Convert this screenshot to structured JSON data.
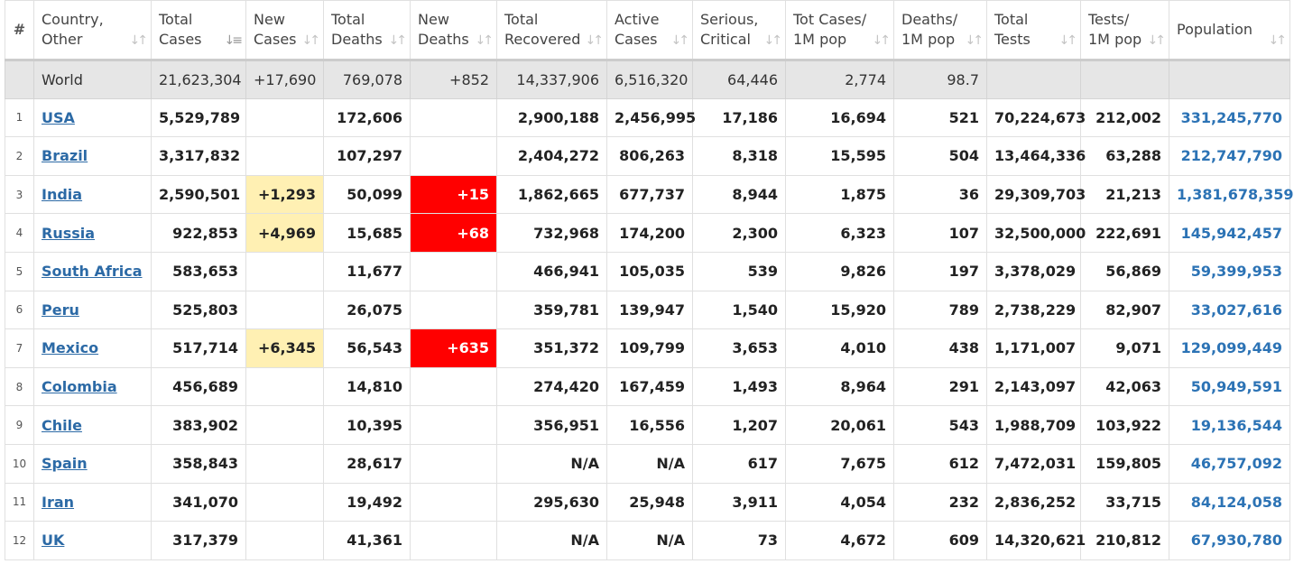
{
  "headers": [
    {
      "l1": "#",
      "l2": ""
    },
    {
      "l1": "Country,",
      "l2": "Other"
    },
    {
      "l1": "Total",
      "l2": "Cases"
    },
    {
      "l1": "New",
      "l2": "Cases"
    },
    {
      "l1": "Total",
      "l2": "Deaths"
    },
    {
      "l1": "New",
      "l2": "Deaths"
    },
    {
      "l1": "Total",
      "l2": "Recovered"
    },
    {
      "l1": "Active",
      "l2": "Cases"
    },
    {
      "l1": "Serious,",
      "l2": "Critical"
    },
    {
      "l1": "Tot Cases/",
      "l2": "1M pop"
    },
    {
      "l1": "Deaths/",
      "l2": "1M pop"
    },
    {
      "l1": "Total",
      "l2": "Tests"
    },
    {
      "l1": "Tests/",
      "l2": "1M pop"
    },
    {
      "l1": "Population",
      "l2": ""
    }
  ],
  "sort_icon": "↓↑",
  "sort_icon_active": "↓≡",
  "world": {
    "country": "World",
    "total_cases": "21,623,304",
    "new_cases": "+17,690",
    "total_deaths": "769,078",
    "new_deaths": "+852",
    "total_recovered": "14,337,906",
    "active_cases": "6,516,320",
    "serious": "64,446",
    "cases_per_m": "2,774",
    "deaths_per_m": "98.7",
    "total_tests": "",
    "tests_per_m": "",
    "population": ""
  },
  "rows": [
    {
      "idx": "1",
      "country": "USA",
      "total_cases": "5,529,789",
      "new_cases": "",
      "total_deaths": "172,606",
      "new_deaths": "",
      "total_recovered": "2,900,188",
      "active_cases": "2,456,995",
      "serious": "17,186",
      "cases_per_m": "16,694",
      "deaths_per_m": "521",
      "total_tests": "70,224,673",
      "tests_per_m": "212,002",
      "population": "331,245,770"
    },
    {
      "idx": "2",
      "country": "Brazil",
      "total_cases": "3,317,832",
      "new_cases": "",
      "total_deaths": "107,297",
      "new_deaths": "",
      "total_recovered": "2,404,272",
      "active_cases": "806,263",
      "serious": "8,318",
      "cases_per_m": "15,595",
      "deaths_per_m": "504",
      "total_tests": "13,464,336",
      "tests_per_m": "63,288",
      "population": "212,747,790"
    },
    {
      "idx": "3",
      "country": "India",
      "total_cases": "2,590,501",
      "new_cases": "+1,293",
      "total_deaths": "50,099",
      "new_deaths": "+15",
      "total_recovered": "1,862,665",
      "active_cases": "677,737",
      "serious": "8,944",
      "cases_per_m": "1,875",
      "deaths_per_m": "36",
      "total_tests": "29,309,703",
      "tests_per_m": "21,213",
      "population": "1,381,678,359"
    },
    {
      "idx": "4",
      "country": "Russia",
      "total_cases": "922,853",
      "new_cases": "+4,969",
      "total_deaths": "15,685",
      "new_deaths": "+68",
      "total_recovered": "732,968",
      "active_cases": "174,200",
      "serious": "2,300",
      "cases_per_m": "6,323",
      "deaths_per_m": "107",
      "total_tests": "32,500,000",
      "tests_per_m": "222,691",
      "population": "145,942,457"
    },
    {
      "idx": "5",
      "country": "South Africa",
      "total_cases": "583,653",
      "new_cases": "",
      "total_deaths": "11,677",
      "new_deaths": "",
      "total_recovered": "466,941",
      "active_cases": "105,035",
      "serious": "539",
      "cases_per_m": "9,826",
      "deaths_per_m": "197",
      "total_tests": "3,378,029",
      "tests_per_m": "56,869",
      "population": "59,399,953"
    },
    {
      "idx": "6",
      "country": "Peru",
      "total_cases": "525,803",
      "new_cases": "",
      "total_deaths": "26,075",
      "new_deaths": "",
      "total_recovered": "359,781",
      "active_cases": "139,947",
      "serious": "1,540",
      "cases_per_m": "15,920",
      "deaths_per_m": "789",
      "total_tests": "2,738,229",
      "tests_per_m": "82,907",
      "population": "33,027,616"
    },
    {
      "idx": "7",
      "country": "Mexico",
      "total_cases": "517,714",
      "new_cases": "+6,345",
      "total_deaths": "56,543",
      "new_deaths": "+635",
      "total_recovered": "351,372",
      "active_cases": "109,799",
      "serious": "3,653",
      "cases_per_m": "4,010",
      "deaths_per_m": "438",
      "total_tests": "1,171,007",
      "tests_per_m": "9,071",
      "population": "129,099,449"
    },
    {
      "idx": "8",
      "country": "Colombia",
      "total_cases": "456,689",
      "new_cases": "",
      "total_deaths": "14,810",
      "new_deaths": "",
      "total_recovered": "274,420",
      "active_cases": "167,459",
      "serious": "1,493",
      "cases_per_m": "8,964",
      "deaths_per_m": "291",
      "total_tests": "2,143,097",
      "tests_per_m": "42,063",
      "population": "50,949,591"
    },
    {
      "idx": "9",
      "country": "Chile",
      "total_cases": "383,902",
      "new_cases": "",
      "total_deaths": "10,395",
      "new_deaths": "",
      "total_recovered": "356,951",
      "active_cases": "16,556",
      "serious": "1,207",
      "cases_per_m": "20,061",
      "deaths_per_m": "543",
      "total_tests": "1,988,709",
      "tests_per_m": "103,922",
      "population": "19,136,544"
    },
    {
      "idx": "10",
      "country": "Spain",
      "total_cases": "358,843",
      "new_cases": "",
      "total_deaths": "28,617",
      "new_deaths": "",
      "total_recovered": "N/A",
      "active_cases": "N/A",
      "serious": "617",
      "cases_per_m": "7,675",
      "deaths_per_m": "612",
      "total_tests": "7,472,031",
      "tests_per_m": "159,805",
      "population": "46,757,092"
    },
    {
      "idx": "11",
      "country": "Iran",
      "total_cases": "341,070",
      "new_cases": "",
      "total_deaths": "19,492",
      "new_deaths": "",
      "total_recovered": "295,630",
      "active_cases": "25,948",
      "serious": "3,911",
      "cases_per_m": "4,054",
      "deaths_per_m": "232",
      "total_tests": "2,836,252",
      "tests_per_m": "33,715",
      "population": "84,124,058"
    },
    {
      "idx": "12",
      "country": "UK",
      "total_cases": "317,379",
      "new_cases": "",
      "total_deaths": "41,361",
      "new_deaths": "",
      "total_recovered": "N/A",
      "active_cases": "N/A",
      "serious": "73",
      "cases_per_m": "4,672",
      "deaths_per_m": "609",
      "total_tests": "14,320,621",
      "tests_per_m": "210,812",
      "population": "67,930,780"
    }
  ]
}
